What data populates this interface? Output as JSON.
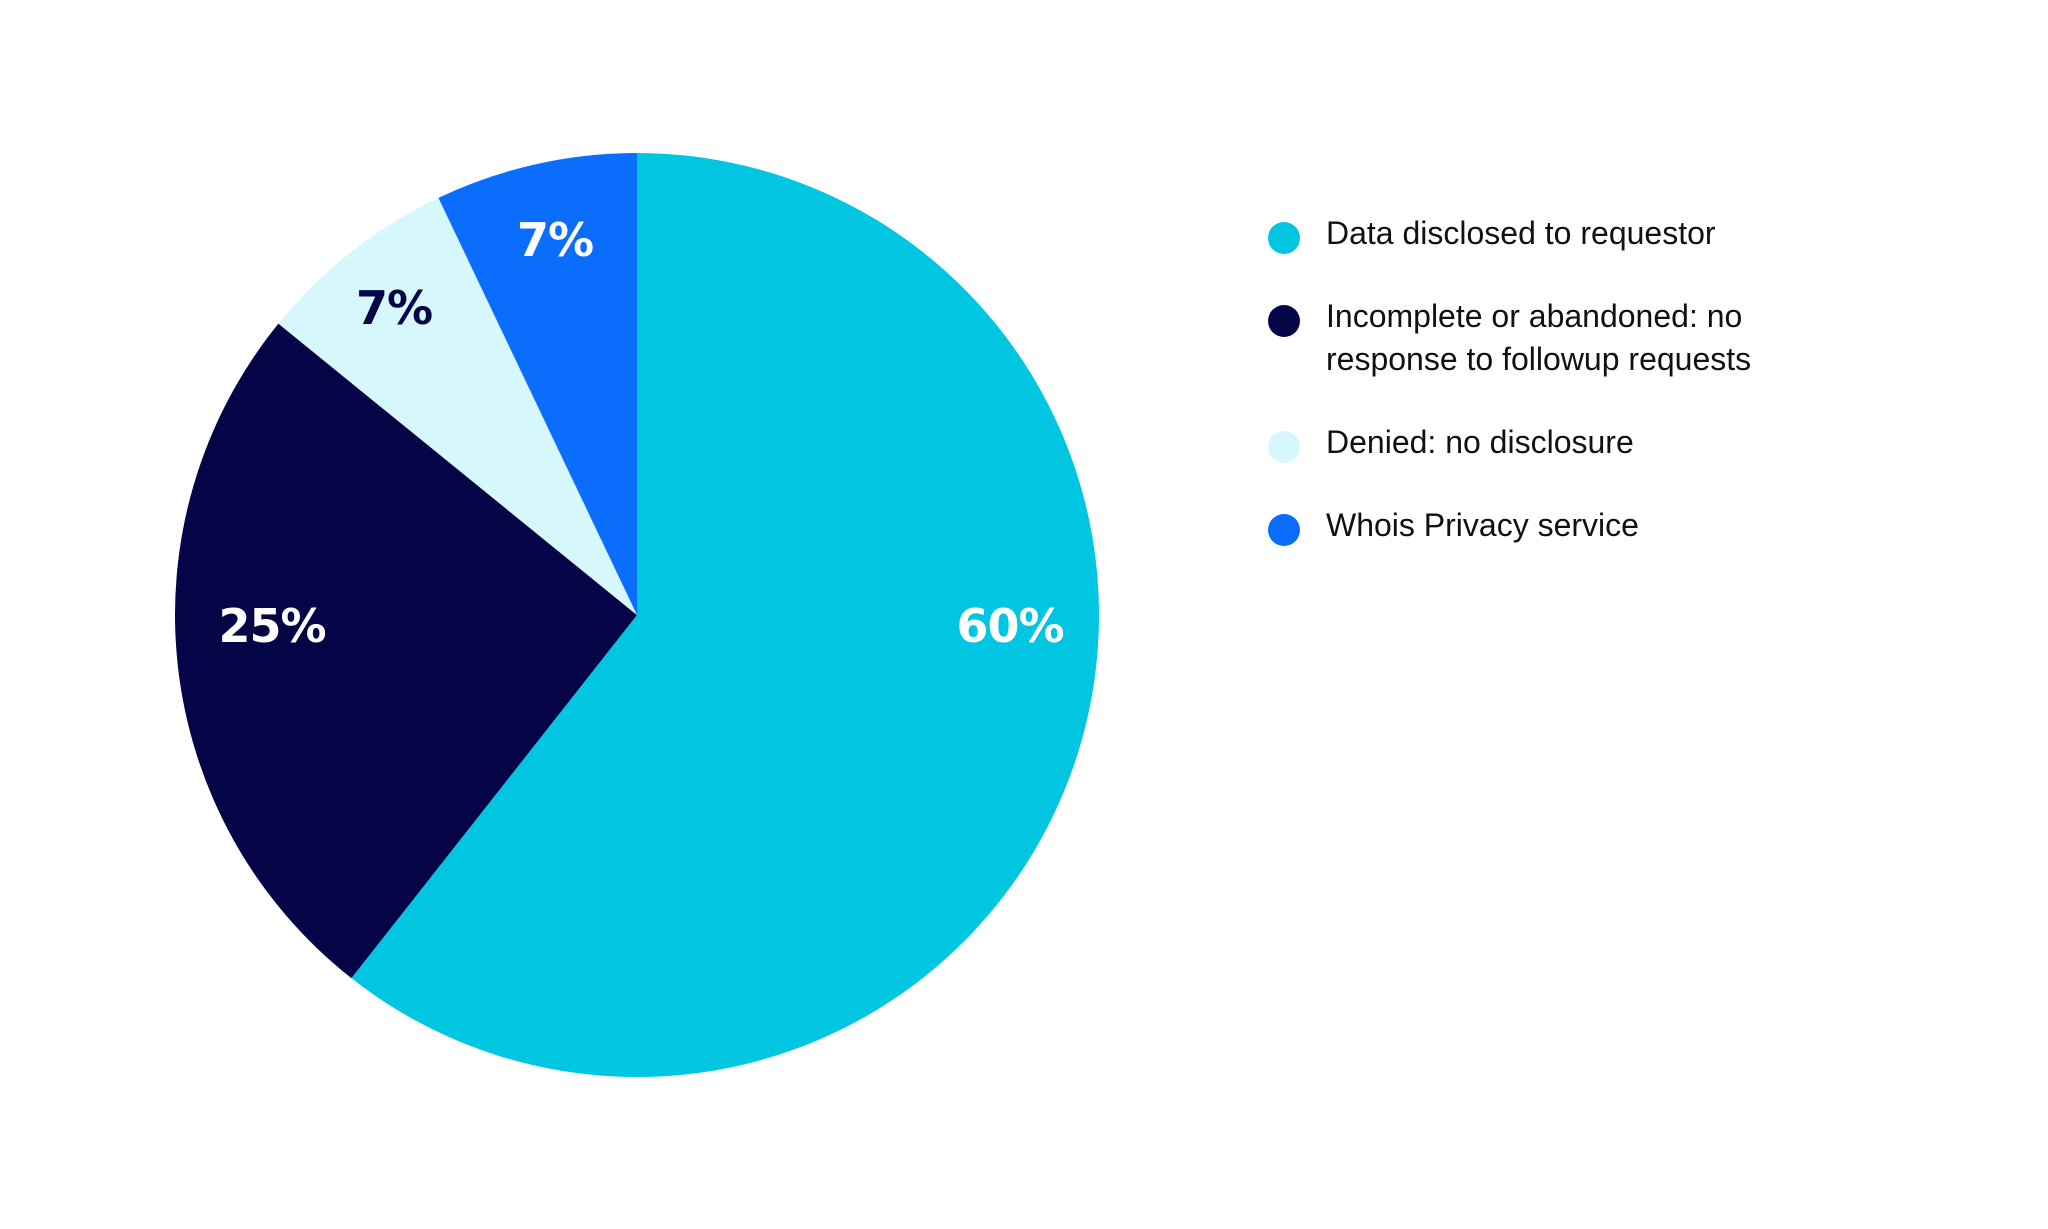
{
  "chart_data": {
    "type": "pie",
    "title": "",
    "slices": [
      {
        "label": "Data disclosed to requestor",
        "value": 60,
        "display": "60%",
        "color": "#00C6E2",
        "text_color": "#FFFFFF"
      },
      {
        "label": "Incomplete or abandoned: no response to followup requests",
        "value": 25,
        "display": "25%",
        "color": "#050447",
        "text_color": "#FFFFFF"
      },
      {
        "label": "Denied: no disclosure",
        "value": 7,
        "display": "7%",
        "color": "#D6F8FD",
        "text_color": "#050447"
      },
      {
        "label": "Whois Privacy service",
        "value": 7,
        "display": "7%",
        "color": "#0A6DFB",
        "text_color": "#FFFFFF"
      }
    ],
    "start_angle_deg": 0,
    "direction": "clockwise",
    "legend_position": "right"
  },
  "legend": {
    "items": [
      {
        "label": "Data disclosed to requestor",
        "color": "#00C6E2"
      },
      {
        "label": "Incomplete or abandoned: no response to followup requests",
        "color": "#050447"
      },
      {
        "label": "Denied: no disclosure",
        "color": "#D6F8FD"
      },
      {
        "label": "Whois Privacy service",
        "color": "#0A6DFB"
      }
    ]
  },
  "labels": {
    "disclosed": "60%",
    "incomplete": "25%",
    "denied": "7%",
    "privacy": "7%"
  }
}
